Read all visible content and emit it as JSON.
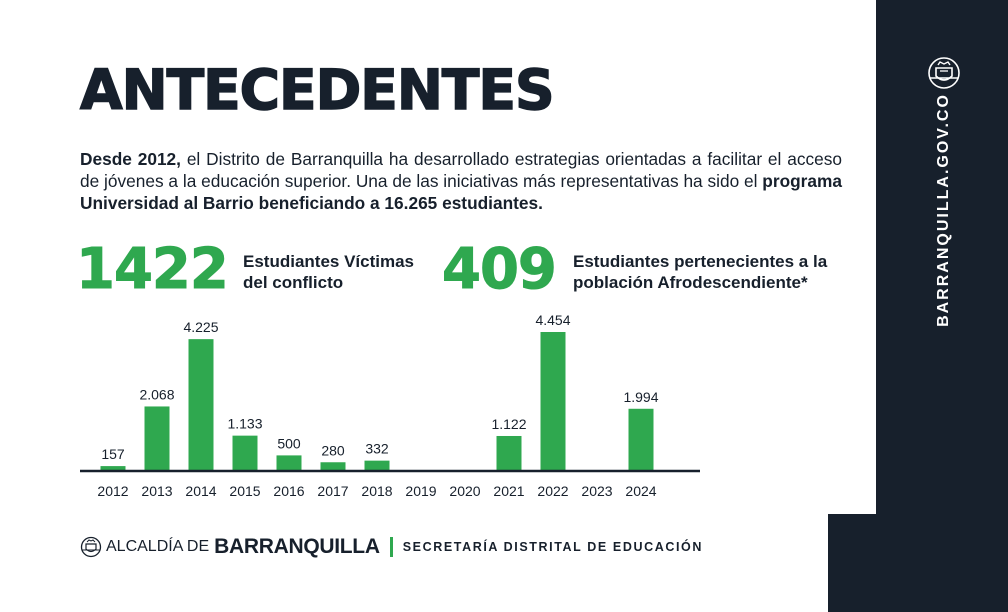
{
  "title": "ANTECEDENTES",
  "intro": {
    "lead": "Desde 2012,",
    "text1": " el Distrito de Barranquilla ha desarrollado estrategias orientadas a facilitar el acceso de jóvenes a la educación superior. Una de las iniciativas más representativas ha sido el ",
    "highlight": "programa Universidad al Barrio beneficiando a 16.265 estudiantes."
  },
  "stats": [
    {
      "value": "1422",
      "label_line1": "Estudiantes Víctimas",
      "label_line2": "del conflicto"
    },
    {
      "value": "409",
      "label_line1": "Estudiantes pertenecientes a la",
      "label_line2": "población Afrodescendiente*"
    }
  ],
  "sidebar": {
    "url": "BARRANQUILLA.GOV.CO",
    "seal_icon": "coat-of-arms-icon"
  },
  "footer": {
    "alcaldia": "ALCALDÍA DE",
    "city": "BARRANQUILLA",
    "secretaria": "SECRETARÍA DISTRITAL DE EDUCACIÓN",
    "seal_icon": "coat-of-arms-icon"
  },
  "colors": {
    "accent": "#2fa84f",
    "dark": "#17202c",
    "background": "#ffffff"
  },
  "chart_data": {
    "type": "bar",
    "categories": [
      "2012",
      "2013",
      "2014",
      "2015",
      "2016",
      "2017",
      "2018",
      "2019",
      "2020",
      "2021",
      "2022",
      "2023",
      "2024"
    ],
    "values": [
      157,
      2068,
      4225,
      1133,
      500,
      280,
      332,
      null,
      null,
      1122,
      4454,
      null,
      1994
    ],
    "value_labels": [
      "157",
      "2.068",
      "4.225",
      "1.133",
      "500",
      "280",
      "332",
      "",
      "",
      "1.122",
      "4.454",
      "",
      "1.994"
    ],
    "title": "",
    "xlabel": "",
    "ylabel": "",
    "ylim": [
      0,
      4454
    ],
    "grid": false,
    "legend": "none"
  }
}
